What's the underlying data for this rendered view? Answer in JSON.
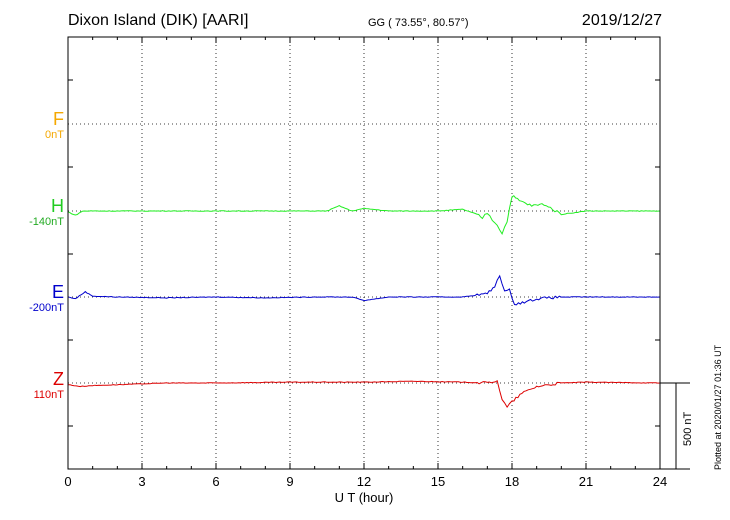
{
  "header": {
    "station": "Dixon Island (DIK)  [AARI]",
    "coords": "GG ( 73.55°,  80.57°)",
    "date": "2019/12/27"
  },
  "credit": "Plotted at 2020/01/27 01:36 UT",
  "scale_bar_label": "500 nT",
  "colors": {
    "F": "#f5a800",
    "H": "#22ee22",
    "E": "#0000cc",
    "Z": "#dd0000"
  },
  "chart_data": {
    "type": "line",
    "xlabel": "U T (hour)",
    "xlim": [
      0,
      24
    ],
    "x_ticks": [
      "0",
      "3",
      "6",
      "9",
      "12",
      "15",
      "18",
      "21",
      "24"
    ],
    "scale_bar_nT": 500,
    "panels": [
      {
        "name": "F",
        "baseline_label": "0nT",
        "color": "#f5a800",
        "values": []
      },
      {
        "name": "H",
        "baseline_label": "-140nT",
        "color": "#22ee22",
        "x": [
          0,
          0.3,
          0.6,
          1.5,
          3,
          5,
          7,
          9,
          10.5,
          11,
          11.5,
          12,
          13,
          15,
          16,
          16.5,
          16.8,
          17.0,
          17.2,
          17.4,
          17.6,
          17.8,
          18.0,
          18.3,
          18.8,
          19.3,
          20,
          21,
          22,
          23,
          24
        ],
        "values": [
          -5,
          -25,
          0,
          0,
          0,
          0,
          0,
          0,
          0,
          30,
          0,
          15,
          0,
          0,
          10,
          -15,
          -40,
          -10,
          -50,
          -80,
          -130,
          -60,
          90,
          60,
          30,
          40,
          -20,
          0,
          0,
          0,
          0
        ]
      },
      {
        "name": "E",
        "baseline_label": "-200nT",
        "color": "#0000cc",
        "x": [
          0,
          0.3,
          0.7,
          1.0,
          2,
          4,
          6,
          8,
          10,
          11.5,
          12,
          13,
          15,
          16,
          16.5,
          17.0,
          17.3,
          17.5,
          17.7,
          17.9,
          18.1,
          18.5,
          19,
          19.5,
          20,
          21,
          22,
          23,
          24
        ],
        "values": [
          0,
          -10,
          30,
          5,
          0,
          -5,
          0,
          -5,
          0,
          0,
          -20,
          0,
          0,
          0,
          10,
          20,
          60,
          130,
          30,
          40,
          -40,
          -30,
          -10,
          -5,
          0,
          0,
          0,
          0,
          0
        ]
      },
      {
        "name": "Z",
        "baseline_label": "110nT",
        "color": "#dd0000",
        "x": [
          0,
          0.5,
          1,
          2,
          3,
          4,
          6,
          9,
          12,
          14,
          16,
          17.0,
          17.4,
          17.6,
          17.8,
          18.0,
          18.4,
          19,
          20,
          21,
          24
        ],
        "values": [
          -10,
          -20,
          -15,
          -10,
          -5,
          0,
          0,
          5,
          5,
          10,
          5,
          0,
          15,
          -100,
          -140,
          -110,
          -60,
          -20,
          0,
          5,
          0
        ]
      }
    ]
  }
}
